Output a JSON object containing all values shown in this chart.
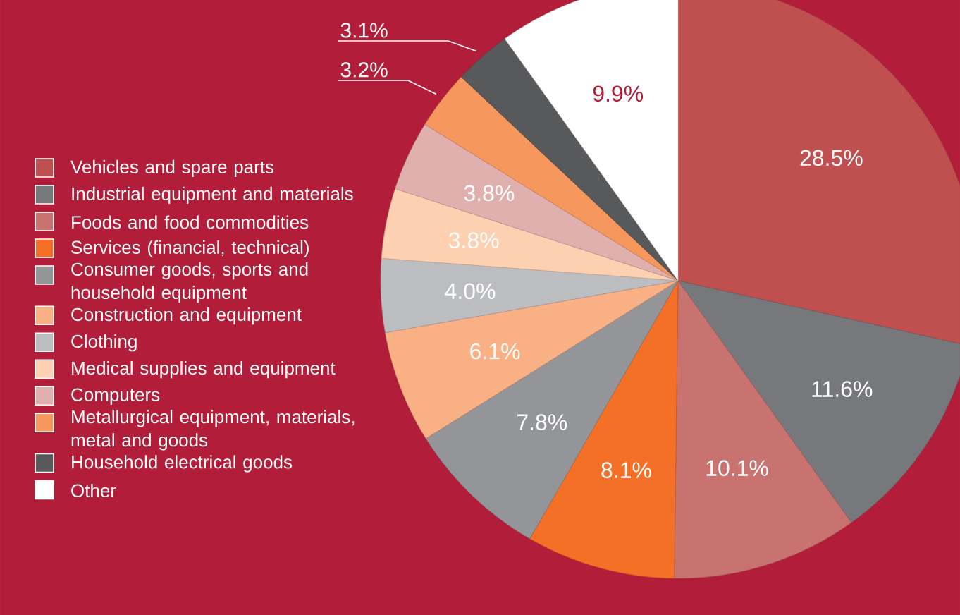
{
  "chart_data": {
    "type": "pie",
    "categories": [
      "Vehicles and spare parts",
      "Industrial equipment and materials",
      "Foods and food commodities",
      "Services (financial, technical)",
      "Consumer goods, sports and household equipment",
      "Construction and equipment",
      "Clothing",
      "Medical supplies and equipment",
      "Computers",
      "Metallurgical equipment, materials, metal and goods",
      "Household electrical goods",
      "Other"
    ],
    "values": [
      28.5,
      11.6,
      10.1,
      8.1,
      7.8,
      6.1,
      4.0,
      3.8,
      3.8,
      3.2,
      3.1,
      9.9
    ],
    "colors": [
      "#c0504f",
      "#77787b",
      "#c87370",
      "#f37026",
      "#939598",
      "#f8b084",
      "#bcbdc0",
      "#fcd0b0",
      "#dfb0ad",
      "#f6985e",
      "#58595b",
      "#ffffff"
    ],
    "value_labels": [
      "28.5%",
      "11.6%",
      "10.1%",
      "8.1%",
      "7.8%",
      "6.1%",
      "4.0%",
      "3.8%",
      "3.8%",
      "3.2%",
      "3.1%",
      "9.9%"
    ],
    "legend": "left"
  }
}
